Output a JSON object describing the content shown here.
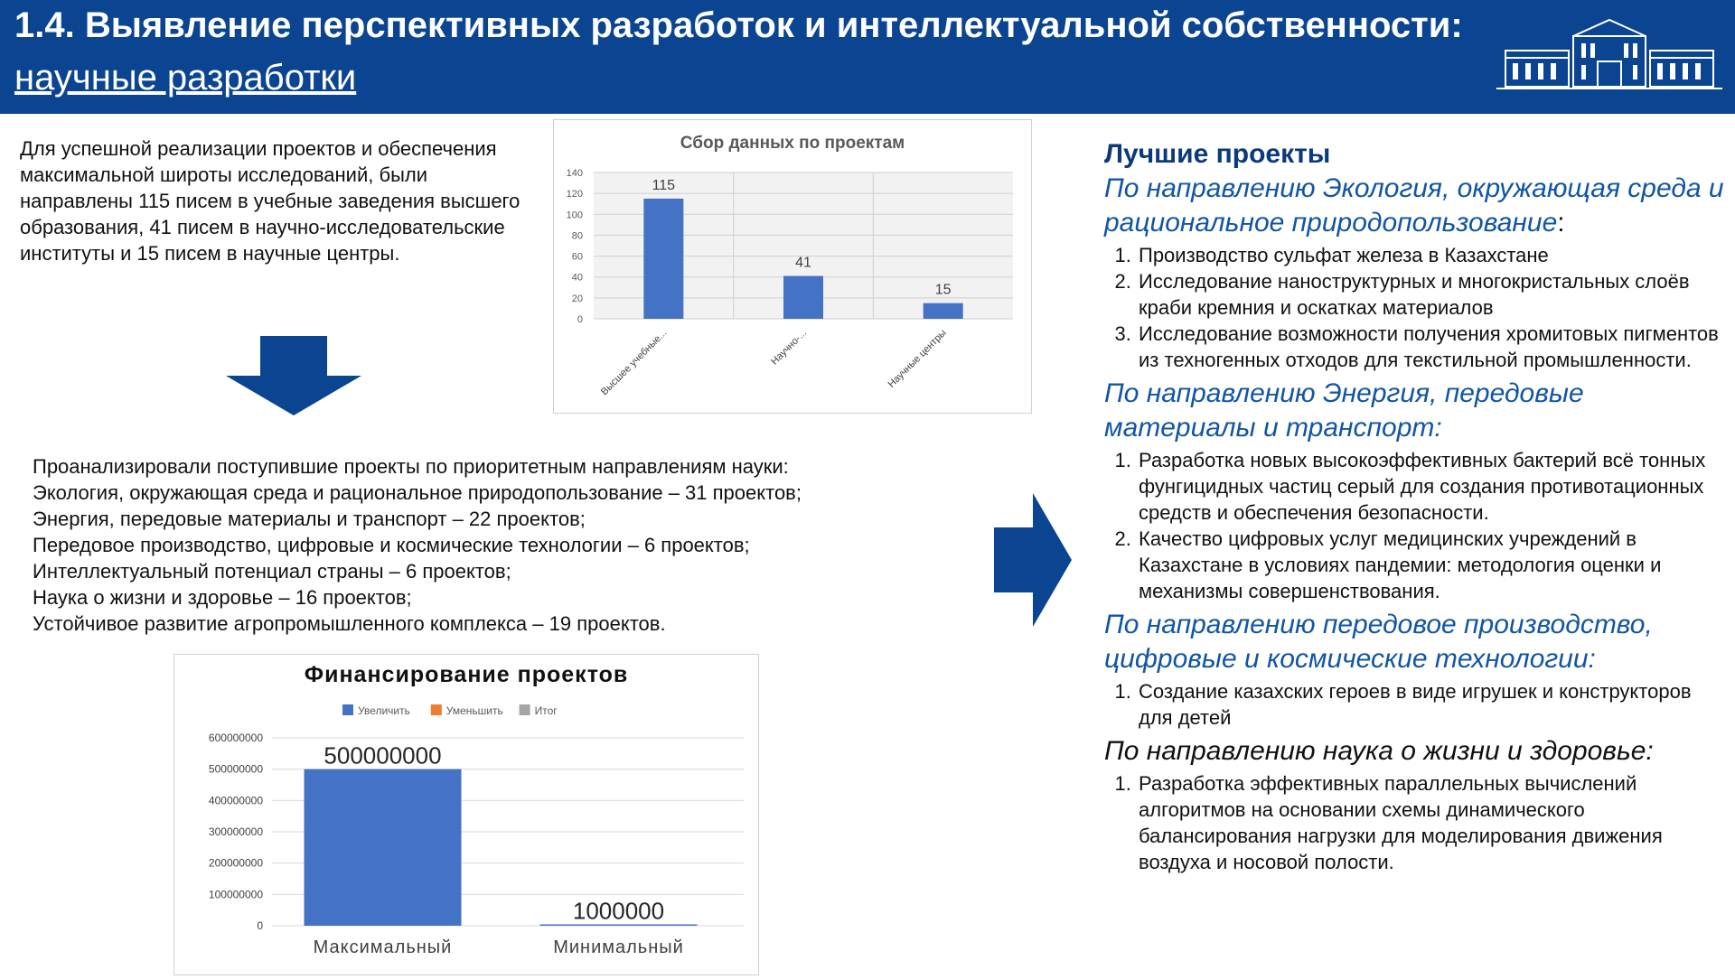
{
  "header": {
    "title": "1.4. Выявление перспективных разработок и интеллектуальной собственности:",
    "subtitle": "научные разработки",
    "colors": {
      "header_bg": "#0b4591",
      "accent": "#1155a5"
    }
  },
  "intro": {
    "text": "Для успешной реализации проектов и обеспечения максимальной широты исследований, были направлены 115 писем в учебные заведения высшего образования, 41 писем в научно-исследовательские институты и 15 писем в научные центры."
  },
  "analysis": {
    "lines": [
      "Проанализировали поступившие проекты по приоритетным направлениям науки:",
      "Экология, окружающая среда и рациональное природопользование – 31 проектов;",
      "Энергия, передовые материалы и транспорт – 22 проектов;",
      "Передовое производство, цифровые и космические технологии – 6 проектов;",
      "Интеллектуальный потенциал страны – 6 проектов;",
      "Наука о жизни и здоровье – 16 проектов;",
      "Устойчивое развитие агропромышленного комплекса – 19 проектов."
    ]
  },
  "chart_data": [
    {
      "type": "bar",
      "title": "Сбор данных по проектам",
      "categories": [
        "Высшее учебные...",
        "Научно-...",
        "Научные центры"
      ],
      "values": [
        115,
        41,
        15
      ],
      "ylim": [
        0,
        140
      ],
      "yticks": [
        0,
        20,
        40,
        60,
        80,
        100,
        120,
        140
      ],
      "grid": "on",
      "color": "#4472c4"
    },
    {
      "type": "bar",
      "title": "Финансирование проектов",
      "legend": [
        "Увеличить",
        "Уменьшить",
        "Итог"
      ],
      "legend_colors": [
        "#4472c4",
        "#ed7d31",
        "#a5a5a5"
      ],
      "legend_position": "top",
      "categories": [
        "Максимальный",
        "Минимальный"
      ],
      "values": [
        500000000,
        1000000
      ],
      "value_labels": [
        "500000000",
        "1000000"
      ],
      "ylim": [
        0,
        600000000
      ],
      "yticks": [
        "0",
        "100000000",
        "200000000",
        "300000000",
        "400000000",
        "500000000",
        "600000000"
      ],
      "grid": "on",
      "color": "#4472c4"
    }
  ],
  "best": {
    "heading": "Лучшие проекты",
    "sections": [
      {
        "title": "По направлению Экология, окружающая среда и рациональное природопользование",
        "suffix": ":",
        "items": [
          "Производство сульфат железа в Казахстане",
          "Исследование наноструктурных и многокристальных слоёв краби кремния и оскатках материалов",
          "Исследование возможности получения хромитовых пигментов из техногенных отходов для текстильной промышленности."
        ]
      },
      {
        "title": "По направлению Энергия, передовые материалы и транспорт:",
        "suffix": "",
        "items": [
          "Разработка новых высокоэффективных бактерий всё тонных фунгицидных частиц серый для создания противотационных средств и обеспечения безопасности.",
          "Качество цифровых услуг медицинских учреждений в Казахстане в условиях пандемии: методология оценки и механизмы совершенствования."
        ]
      },
      {
        "title": "По направлению передовое производство, цифровые и космические технологии:",
        "suffix": "",
        "items": [
          "Создание казахских героев в виде игрушек и  конструкторов для детей"
        ]
      },
      {
        "title": "По направлению наука о жизни и здоровье:",
        "suffix": "",
        "items": [
          "Разработка эффективных параллельных вычислений алгоритмов на основании схемы динамического балансирования нагрузки для моделирования движения воздуха и носовой полости."
        ]
      }
    ]
  },
  "icons": [
    "building-logo-icon",
    "down-arrow-icon",
    "right-arrow-icon"
  ]
}
